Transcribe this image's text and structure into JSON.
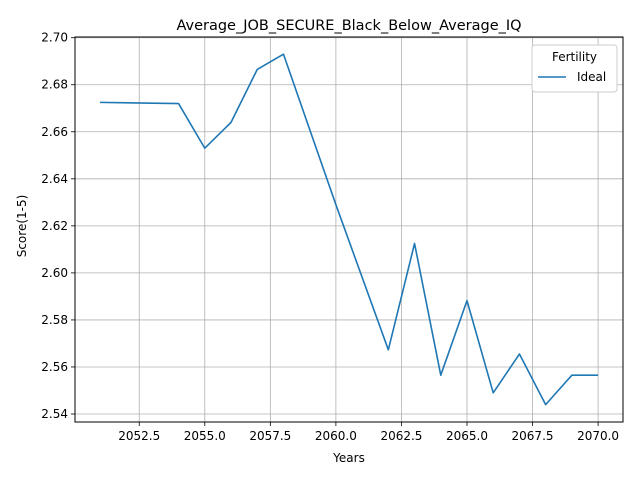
{
  "chart_data": {
    "type": "line",
    "title": "Average_JOB_SECURE_Black_Below_Average_IQ",
    "xlabel": "Years",
    "ylabel": "Score(1-5)",
    "xlim": [
      2050.05,
      2070.95
    ],
    "ylim": [
      2.5366,
      2.7003
    ],
    "x_ticks": [
      2052.5,
      2055.0,
      2057.5,
      2060.0,
      2062.5,
      2065.0,
      2067.5,
      2070.0
    ],
    "x_tick_labels": [
      "2052.5",
      "2055.0",
      "2057.5",
      "2060.0",
      "2062.5",
      "2065.0",
      "2067.5",
      "2070.0"
    ],
    "y_ticks": [
      2.54,
      2.56,
      2.58,
      2.6,
      2.62,
      2.64,
      2.66,
      2.68,
      2.7
    ],
    "y_tick_labels": [
      "2.54",
      "2.56",
      "2.58",
      "2.60",
      "2.62",
      "2.64",
      "2.66",
      "2.68",
      "2.70"
    ],
    "grid": true,
    "legend": {
      "title": "Fertility",
      "placement": "top-right"
    },
    "series": [
      {
        "name": "Ideal",
        "color": "#1f77b4",
        "x": [
          2051,
          2054,
          2055,
          2056,
          2057,
          2058,
          2060,
          2062,
          2063,
          2064,
          2065,
          2066,
          2067,
          2068,
          2069,
          2070
        ],
        "values": [
          2.6725,
          2.672,
          2.653,
          2.664,
          2.6865,
          2.693,
          2.629,
          2.5673,
          2.6125,
          2.5565,
          2.5882,
          2.549,
          2.5655,
          2.544,
          2.5565,
          2.5565
        ]
      }
    ]
  }
}
